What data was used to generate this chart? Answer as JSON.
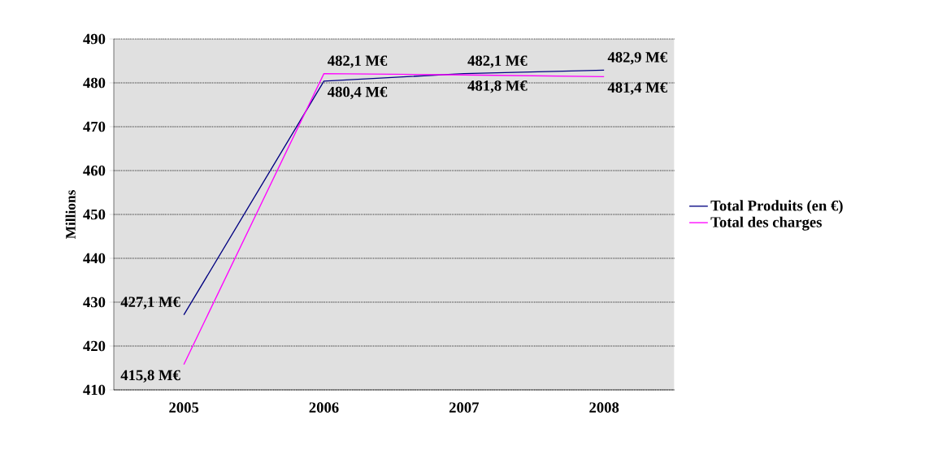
{
  "chart_data": {
    "type": "line",
    "ylabel": "Millions",
    "categories": [
      "2005",
      "2006",
      "2007",
      "2008"
    ],
    "series": [
      {
        "name": "Total Produits (en €)",
        "color": "#000080",
        "values": [
          427.1,
          480.4,
          482.1,
          482.9
        ],
        "value_labels": [
          "427,1 M€",
          "480,4 M€",
          "482,1 M€",
          "482,9 M€"
        ]
      },
      {
        "name": "Total des charges",
        "color": "#ff00ff",
        "values": [
          415.8,
          482.1,
          481.8,
          481.4
        ],
        "value_labels": [
          "415,8 M€",
          "482,1 M€",
          "481,8 M€",
          "481,4 M€"
        ]
      }
    ],
    "ylim": [
      410,
      490
    ],
    "yticks": [
      410,
      420,
      430,
      440,
      450,
      460,
      470,
      480,
      490
    ],
    "grid": "y",
    "legend": "right",
    "marker": "none",
    "line_style": "solid"
  }
}
